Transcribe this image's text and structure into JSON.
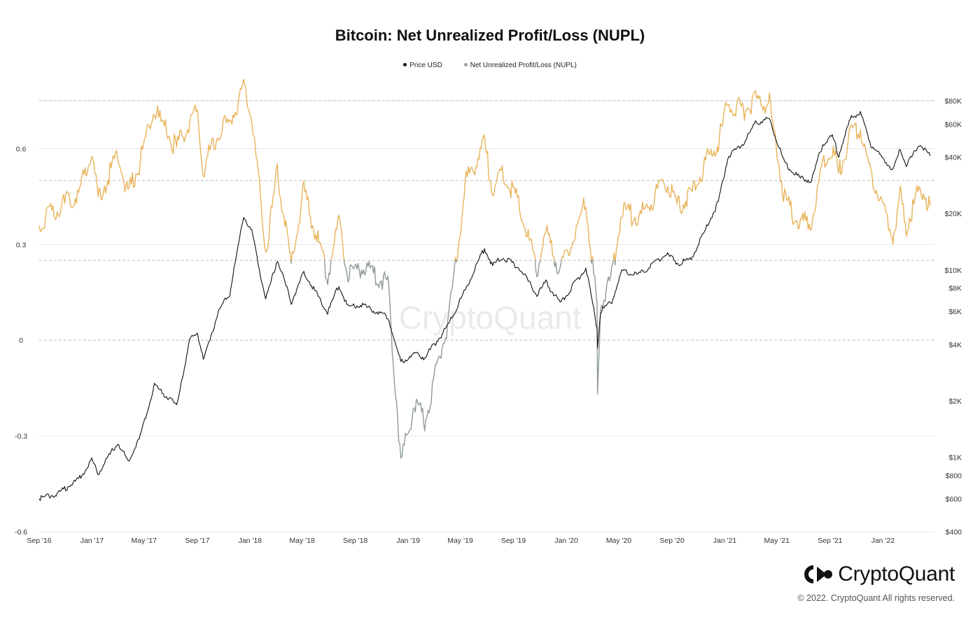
{
  "chart_data": {
    "type": "line",
    "title": "Bitcoin: Net Unrealized Profit/Loss (NUPL)",
    "legend_placement": "top-center",
    "grid": true,
    "x_ticks": [
      "Sep '16",
      "Jan '17",
      "May '17",
      "Sep '17",
      "Jan '18",
      "May '18",
      "Sep '18",
      "Jan '19",
      "May '19",
      "Sep '19",
      "Jan '20",
      "May '20",
      "Sep '20",
      "Jan '21",
      "May '21",
      "Sep '21",
      "Jan '22"
    ],
    "x_range": [
      "2016-09-01",
      "2022-04-30"
    ],
    "y_left": {
      "ticks": [
        "0.6",
        "0.3",
        "0",
        "-0.3",
        "-0.6"
      ],
      "range": [
        -0.6,
        0.75
      ]
    },
    "y_right": {
      "scale": "log",
      "ticks": [
        "$80K",
        "$60K",
        "$40K",
        "$20K",
        "$10K",
        "$8K",
        "$6K",
        "$4K",
        "$2K",
        "$1K",
        "$800",
        "$600",
        "$400"
      ],
      "range": [
        400,
        80000
      ]
    },
    "reference_lines_nupl": [
      0.75,
      0.5,
      0.25,
      0
    ],
    "series": [
      {
        "name": "Price USD",
        "axis": "right",
        "color": "#111111",
        "points": [
          [
            "2016-09-01",
            600
          ],
          [
            "2016-10-15",
            640
          ],
          [
            "2016-12-01",
            760
          ],
          [
            "2016-12-31",
            960
          ],
          [
            "2017-01-15",
            820
          ],
          [
            "2017-03-01",
            1200
          ],
          [
            "2017-03-25",
            950
          ],
          [
            "2017-04-20",
            1250
          ],
          [
            "2017-05-25",
            2400
          ],
          [
            "2017-07-15",
            1900
          ],
          [
            "2017-08-15",
            4200
          ],
          [
            "2017-09-01",
            4700
          ],
          [
            "2017-09-15",
            3300
          ],
          [
            "2017-10-20",
            6000
          ],
          [
            "2017-11-15",
            7500
          ],
          [
            "2017-12-17",
            19500
          ],
          [
            "2018-01-05",
            16000
          ],
          [
            "2018-02-06",
            6900
          ],
          [
            "2018-03-05",
            11400
          ],
          [
            "2018-04-06",
            6700
          ],
          [
            "2018-05-05",
            9700
          ],
          [
            "2018-06-29",
            5900
          ],
          [
            "2018-07-25",
            8300
          ],
          [
            "2018-08-15",
            6300
          ],
          [
            "2018-09-15",
            6500
          ],
          [
            "2018-11-15",
            5600
          ],
          [
            "2018-12-15",
            3200
          ],
          [
            "2019-01-15",
            3600
          ],
          [
            "2019-02-08",
            3400
          ],
          [
            "2019-04-02",
            5000
          ],
          [
            "2019-05-15",
            8000
          ],
          [
            "2019-06-26",
            13000
          ],
          [
            "2019-07-15",
            10500
          ],
          [
            "2019-08-06",
            11800
          ],
          [
            "2019-09-15",
            10200
          ],
          [
            "2019-10-25",
            7400
          ],
          [
            "2019-11-15",
            8600
          ],
          [
            "2019-12-18",
            6600
          ],
          [
            "2020-02-15",
            10300
          ],
          [
            "2020-03-12",
            4900
          ],
          [
            "2020-03-13",
            3900
          ],
          [
            "2020-03-20",
            6000
          ],
          [
            "2020-04-15",
            6800
          ],
          [
            "2020-05-08",
            9800
          ],
          [
            "2020-06-15",
            9400
          ],
          [
            "2020-07-27",
            11000
          ],
          [
            "2020-08-17",
            12300
          ],
          [
            "2020-09-15",
            10800
          ],
          [
            "2020-10-15",
            11500
          ],
          [
            "2020-11-15",
            16000
          ],
          [
            "2020-12-17",
            23000
          ],
          [
            "2021-01-08",
            40000
          ],
          [
            "2021-02-15",
            48000
          ],
          [
            "2021-03-13",
            61000
          ],
          [
            "2021-04-14",
            64000
          ],
          [
            "2021-05-19",
            37000
          ],
          [
            "2021-06-22",
            31000
          ],
          [
            "2021-07-20",
            30000
          ],
          [
            "2021-08-15",
            47000
          ],
          [
            "2021-09-06",
            52000
          ],
          [
            "2021-09-21",
            41000
          ],
          [
            "2021-10-20",
            66000
          ],
          [
            "2021-11-10",
            68500
          ],
          [
            "2021-12-04",
            47000
          ],
          [
            "2022-01-24",
            34000
          ],
          [
            "2022-02-10",
            44000
          ],
          [
            "2022-02-24",
            36000
          ],
          [
            "2022-03-28",
            47500
          ],
          [
            "2022-04-20",
            40500
          ]
        ]
      },
      {
        "name": "Net Unrealized Profit/Loss (NUPL)",
        "axis": "left",
        "color_bands": [
          {
            "range": [
              0.25,
              0.75
            ],
            "color": "#e8b35a"
          },
          {
            "range": [
              -0.6,
              0.25
            ],
            "color": "#8e9a98"
          }
        ],
        "points": [
          [
            "2016-09-01",
            0.37
          ],
          [
            "2016-10-15",
            0.41
          ],
          [
            "2016-12-01",
            0.46
          ],
          [
            "2016-12-31",
            0.6
          ],
          [
            "2017-01-15",
            0.44
          ],
          [
            "2017-03-01",
            0.58
          ],
          [
            "2017-03-25",
            0.46
          ],
          [
            "2017-04-20",
            0.55
          ],
          [
            "2017-05-25",
            0.72
          ],
          [
            "2017-07-15",
            0.6
          ],
          [
            "2017-08-15",
            0.69
          ],
          [
            "2017-09-01",
            0.72
          ],
          [
            "2017-09-15",
            0.53
          ],
          [
            "2017-10-20",
            0.66
          ],
          [
            "2017-11-15",
            0.68
          ],
          [
            "2017-12-17",
            0.79
          ],
          [
            "2018-01-05",
            0.7
          ],
          [
            "2018-02-06",
            0.28
          ],
          [
            "2018-03-05",
            0.53
          ],
          [
            "2018-04-06",
            0.24
          ],
          [
            "2018-05-05",
            0.47
          ],
          [
            "2018-06-29",
            0.2
          ],
          [
            "2018-07-25",
            0.38
          ],
          [
            "2018-08-15",
            0.2
          ],
          [
            "2018-09-15",
            0.23
          ],
          [
            "2018-11-15",
            0.18
          ],
          [
            "2018-12-15",
            -0.38
          ],
          [
            "2019-01-15",
            -0.2
          ],
          [
            "2019-02-08",
            -0.25
          ],
          [
            "2019-04-02",
            0.05
          ],
          [
            "2019-05-15",
            0.5
          ],
          [
            "2019-06-26",
            0.61
          ],
          [
            "2019-07-15",
            0.47
          ],
          [
            "2019-08-06",
            0.52
          ],
          [
            "2019-09-15",
            0.43
          ],
          [
            "2019-10-25",
            0.22
          ],
          [
            "2019-11-15",
            0.34
          ],
          [
            "2019-12-18",
            0.21
          ],
          [
            "2020-02-15",
            0.43
          ],
          [
            "2020-03-12",
            0.1
          ],
          [
            "2020-03-13",
            -0.18
          ],
          [
            "2020-03-20",
            0.12
          ],
          [
            "2020-04-15",
            0.2
          ],
          [
            "2020-05-08",
            0.41
          ],
          [
            "2020-06-15",
            0.38
          ],
          [
            "2020-07-27",
            0.46
          ],
          [
            "2020-08-17",
            0.5
          ],
          [
            "2020-09-15",
            0.42
          ],
          [
            "2020-10-15",
            0.45
          ],
          [
            "2020-11-15",
            0.55
          ],
          [
            "2020-12-17",
            0.62
          ],
          [
            "2021-01-08",
            0.74
          ],
          [
            "2021-02-15",
            0.72
          ],
          [
            "2021-03-13",
            0.75
          ],
          [
            "2021-04-14",
            0.74
          ],
          [
            "2021-05-19",
            0.44
          ],
          [
            "2021-06-22",
            0.36
          ],
          [
            "2021-07-20",
            0.38
          ],
          [
            "2021-08-15",
            0.56
          ],
          [
            "2021-09-06",
            0.6
          ],
          [
            "2021-09-21",
            0.52
          ],
          [
            "2021-10-20",
            0.65
          ],
          [
            "2021-11-10",
            0.66
          ],
          [
            "2021-12-04",
            0.52
          ],
          [
            "2022-01-24",
            0.32
          ],
          [
            "2022-02-10",
            0.45
          ],
          [
            "2022-02-24",
            0.36
          ],
          [
            "2022-03-28",
            0.48
          ],
          [
            "2022-04-20",
            0.42
          ]
        ]
      }
    ]
  },
  "brand": {
    "name": "CryptoQuant",
    "watermark": "CryptoQuant",
    "copyright": "© 2022. CryptoQuant All rights reserved."
  },
  "colors": {
    "price": "#111111",
    "nupl_high": "#e8b35a",
    "nupl_low": "#8e9a98",
    "grid": "#e6e6e6",
    "reference": "#bdbdbd"
  }
}
